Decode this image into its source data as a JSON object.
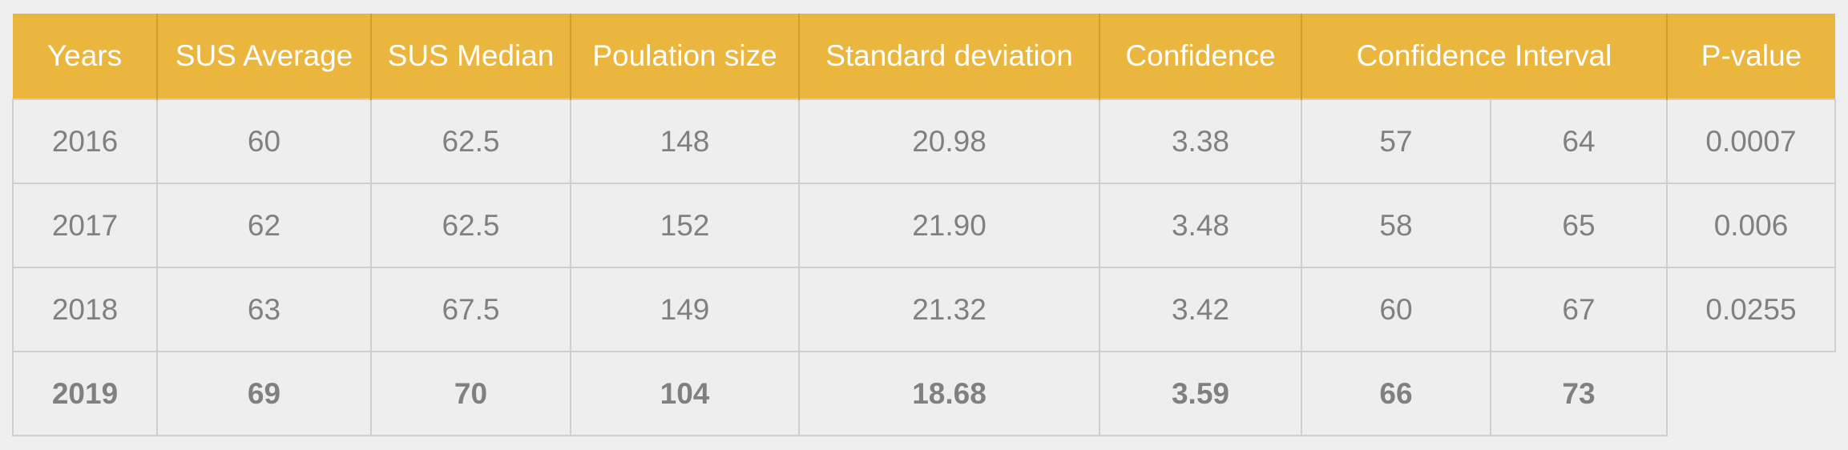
{
  "headers": {
    "years": "Years",
    "sus_average": "SUS Average",
    "sus_median": "SUS Median",
    "population_size": "Poulation size",
    "standard_deviation": "Standard deviation",
    "confidence": "Confidence",
    "confidence_interval": "Confidence Interval",
    "p_value": "P-value"
  },
  "rows": [
    {
      "year": "2016",
      "sus_average": "60",
      "sus_median": "62.5",
      "population_size": "148",
      "standard_deviation": "20.98",
      "confidence": "3.38",
      "ci_low": "57",
      "ci_high": "64",
      "p_value": "0.0007"
    },
    {
      "year": "2017",
      "sus_average": "62",
      "sus_median": "62.5",
      "population_size": "152",
      "standard_deviation": "21.90",
      "confidence": "3.48",
      "ci_low": "58",
      "ci_high": "65",
      "p_value": "0.006"
    },
    {
      "year": "2018",
      "sus_average": "63",
      "sus_median": "67.5",
      "population_size": "149",
      "standard_deviation": "21.32",
      "confidence": "3.42",
      "ci_low": "60",
      "ci_high": "67",
      "p_value": "0.0255"
    },
    {
      "year": "2019",
      "sus_average": "69",
      "sus_median": "70",
      "population_size": "104",
      "standard_deviation": "18.68",
      "confidence": "3.59",
      "ci_low": "66",
      "ci_high": "73",
      "p_value": ""
    }
  ],
  "colors": {
    "header_background": "#eab63e",
    "header_text": "#ffffff",
    "cell_text": "#808080",
    "cell_background": "#eeeeee",
    "grid": "#cfcfcf"
  }
}
